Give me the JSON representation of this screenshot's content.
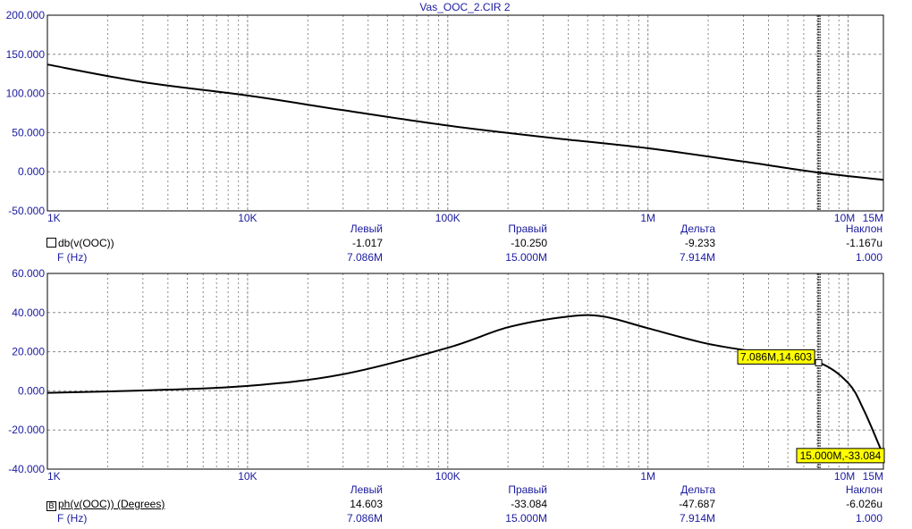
{
  "chart_data": [
    {
      "type": "line",
      "title": "Vas_OOC_2.CIR 2",
      "xscale": "log",
      "xlim": [
        1000,
        15000000
      ],
      "ylim": [
        -50,
        200
      ],
      "xticks": [
        "1K",
        "10K",
        "100K",
        "1M",
        "10M",
        "15M"
      ],
      "yticks": [
        "200.000",
        "150.000",
        "100.000",
        "50.000",
        "0.000",
        "-50.000"
      ],
      "grid": true,
      "cursor_x": 7086000,
      "series": [
        {
          "name": "db(v(OOC))",
          "x": [
            1000,
            3000,
            10000,
            30000,
            100000,
            300000,
            1000000,
            3000000,
            7086000,
            15000000
          ],
          "y": [
            137.0,
            114.5,
            97.4,
            78.7,
            59.0,
            44.5,
            30.0,
            13.0,
            -1.017,
            -10.25
          ]
        }
      ],
      "readout": {
        "headers": [
          "Левый",
          "Правый",
          "Дельта",
          "Наклон"
        ],
        "series_label": "db(v(OOC))",
        "series_values": [
          "-1.017",
          "-10.250",
          "-9.233",
          "-1.167u"
        ],
        "x_label": "F (Hz)",
        "x_values": [
          "7.086M",
          "15.000M",
          "7.914M",
          "1.000"
        ]
      }
    },
    {
      "type": "line",
      "xscale": "log",
      "xlim": [
        1000,
        15000000
      ],
      "ylim": [
        -40,
        60
      ],
      "xticks": [
        "1K",
        "10K",
        "100K",
        "1M",
        "10M",
        "15M"
      ],
      "yticks": [
        "60.000",
        "40.000",
        "20.000",
        "0.000",
        "-20.000",
        "-40.000"
      ],
      "grid": true,
      "cursor_x": 7086000,
      "series": [
        {
          "name": "ph(v(OOC)) (Degrees)",
          "x": [
            1000,
            3000,
            10000,
            30000,
            100000,
            200000,
            400000,
            600000,
            1000000,
            2000000,
            4000000,
            7086000,
            10000000,
            12000000,
            15000000
          ],
          "y": [
            -1.0,
            0.2,
            2.5,
            8.5,
            22.0,
            32.5,
            38.0,
            38.0,
            32.0,
            24.0,
            19.0,
            14.603,
            4.0,
            -10.0,
            -33.084
          ]
        }
      ],
      "annotations": [
        "7.086M,14.603",
        "15.000M,-33.084"
      ],
      "readout": {
        "headers": [
          "Левый",
          "Правый",
          "Дельта",
          "Наклон"
        ],
        "series_label": "ph(v(OOC)) (Degrees)",
        "series_marker": "B",
        "series_values": [
          "14.603",
          "-33.084",
          "-47.687",
          "-6.026u"
        ],
        "x_label": "F (Hz)",
        "x_values": [
          "7.086M",
          "15.000M",
          "7.914M",
          "1.000"
        ]
      }
    }
  ]
}
